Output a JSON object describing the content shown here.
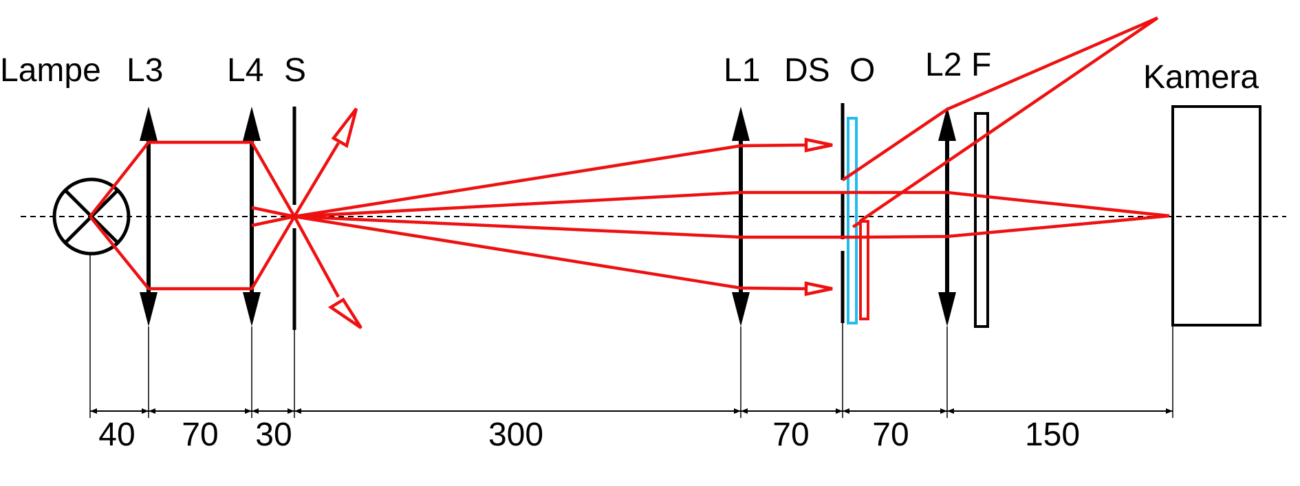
{
  "components": {
    "lampe": "Lampe",
    "l3": "L3",
    "l4": "L4",
    "s": "S",
    "l1": "L1",
    "ds": "DS",
    "o": "O",
    "l2": "L2",
    "f": "F",
    "kamera": "Kamera"
  },
  "dimensions": [
    "40",
    "70",
    "30",
    "300",
    "70",
    "70",
    "150"
  ],
  "colors": {
    "beam": "#ee1111",
    "element": "#000000",
    "sample": "#22bbee"
  }
}
